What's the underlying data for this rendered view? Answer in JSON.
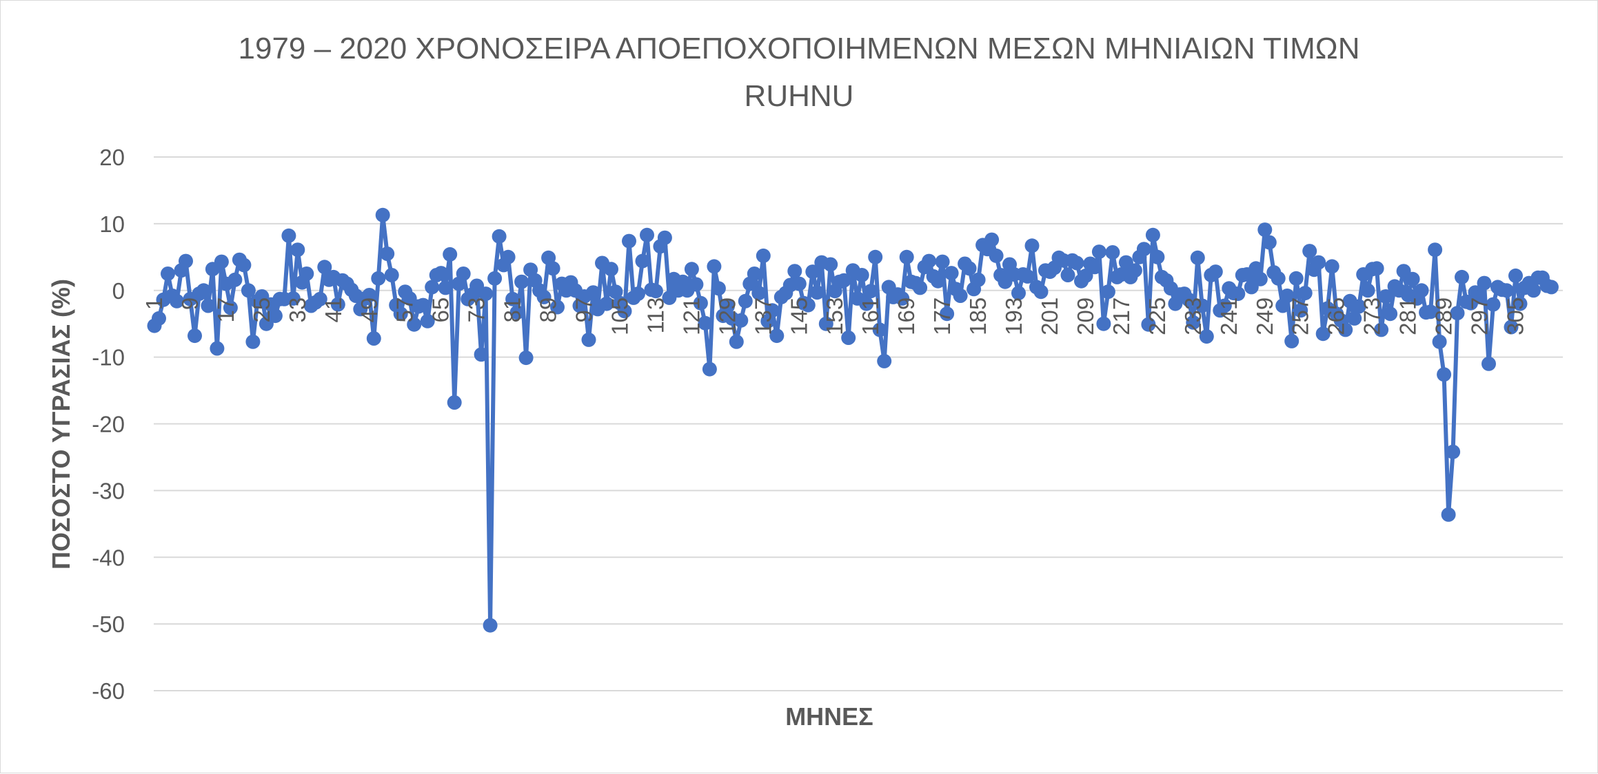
{
  "chart_data": {
    "type": "line",
    "title_lines": [
      "1979 – 2020 ΧΡΟΝΟΣΕΙΡΑ ΑΠΟΕΠΟΧΟΠΟΙΗΜΕΝΩΝ ΜΕΣΩΝ ΜΗΝΙΑΙΩΝ ΤΙΜΩΝ",
      "RUHNU"
    ],
    "xlabel": "ΜΗΝΕΣ",
    "ylabel": "ΠΟΣΟΣΤΟ ΥΓΡΑΣΙΑΣ (%)",
    "ylim": [
      -60,
      20
    ],
    "y_ticks": [
      20,
      10,
      0,
      -10,
      -20,
      -30,
      -40,
      -50,
      -60
    ],
    "x_tick_labels": [
      "1",
      "9",
      "17",
      "25",
      "33",
      "41",
      "49",
      "57",
      "65",
      "73",
      "81",
      "89",
      "97",
      "105",
      "113",
      "121",
      "129",
      "137",
      "145",
      "153",
      "161",
      "169",
      "177",
      "185",
      "193",
      "201",
      "209",
      "217",
      "225",
      "233",
      "241",
      "249",
      "257",
      "265",
      "273",
      "281",
      "289",
      "297",
      "305"
    ],
    "x_tick_step": 8,
    "grid": "horizontal",
    "marker": "circle",
    "series_color": "#4472C4",
    "series": [
      {
        "values": [
          -5.3,
          -4.2,
          -1.4,
          2.5,
          -0.8,
          -1.6,
          3.0,
          4.4,
          -1.3,
          -6.8,
          -0.5,
          0.0,
          -2.3,
          3.2,
          -8.7,
          4.3,
          1.0,
          -2.6,
          1.6,
          4.6,
          3.8,
          0.0,
          -7.7,
          -1.6,
          -0.9,
          -5.0,
          -2.1,
          -3.8,
          -1.3,
          -1.3,
          8.2,
          -1.2,
          6.1,
          1.2,
          2.5,
          -2.3,
          -1.8,
          -1.3,
          3.5,
          1.6,
          2.0,
          -2.1,
          1.5,
          1.0,
          0.1,
          -0.8,
          -2.8,
          -1.2,
          -0.7,
          -7.2,
          1.8,
          11.3,
          5.5,
          2.3,
          -2.2,
          -3.5,
          -0.2,
          -1.2,
          -5.1,
          -2.4,
          -2.2,
          -4.6,
          0.5,
          2.3,
          2.6,
          0.4,
          5.4,
          -16.8,
          1.0,
          2.5,
          -1.3,
          -0.6,
          0.7,
          -9.6,
          -0.5,
          -50.2,
          1.8,
          8.1,
          3.8,
          5.0,
          -1.3,
          -3.3,
          1.3,
          -10.1,
          3.1,
          1.5,
          0.0,
          -1.0,
          4.9,
          3.3,
          -2.5,
          1.0,
          0.0,
          1.2,
          0.0,
          -2.3,
          -0.9,
          -7.4,
          -0.3,
          -2.8,
          4.1,
          -2.0,
          3.2,
          -0.2,
          -1.9,
          -3.1,
          7.4,
          -1.1,
          -0.5,
          4.4,
          8.3,
          0.1,
          -0.1,
          6.6,
          7.9,
          -1.1,
          1.7,
          0.0,
          1.3,
          0.0,
          3.2,
          0.9,
          -1.9,
          -4.9,
          -11.8,
          3.6,
          0.3,
          -3.8,
          -2.4,
          -4.2,
          -7.7,
          -4.5,
          -1.6,
          1.0,
          2.5,
          -0.4,
          5.2,
          -4.6,
          -3.0,
          -6.8,
          -1.0,
          -0.4,
          0.8,
          2.9,
          1.0,
          -1.9,
          -2.2,
          2.8,
          -0.3,
          4.2,
          -5.0,
          3.9,
          -0.1,
          1.3,
          1.5,
          -7.1,
          3.0,
          -1.2,
          2.3,
          -2.0,
          -0.1,
          5.0,
          -5.9,
          -10.6,
          0.5,
          -1.0,
          -0.6,
          -1.2,
          5.0,
          1.3,
          1.1,
          0.4,
          3.5,
          4.4,
          2.1,
          1.4,
          4.3,
          -3.5,
          2.6,
          0.2,
          -0.8,
          4.0,
          3.3,
          0.2,
          1.6,
          6.8,
          6.2,
          7.6,
          5.2,
          2.3,
          1.3,
          3.9,
          2.4,
          -0.4,
          2.4,
          2.1,
          6.7,
          0.5,
          -0.2,
          3.0,
          2.8,
          3.4,
          4.9,
          4.5,
          2.3,
          4.5,
          4.1,
          1.4,
          2.2,
          4.0,
          3.5,
          5.8,
          -5.0,
          -0.2,
          5.7,
          2.0,
          2.4,
          4.2,
          2.0,
          3.0,
          5.0,
          6.2,
          -5.1,
          8.3,
          5.0,
          2.0,
          1.5,
          0.3,
          -2.0,
          -0.6,
          -0.5,
          -1.4,
          -4.8,
          4.9,
          -2.3,
          -6.9,
          2.3,
          2.8,
          -3.0,
          -2.3,
          0.3,
          -0.4,
          -0.5,
          2.3,
          2.4,
          0.5,
          3.3,
          1.7,
          9.1,
          7.2,
          2.7,
          1.8,
          -2.3,
          -0.8,
          -7.6,
          1.8,
          -3.0,
          -0.4,
          5.9,
          3.1,
          4.2,
          -6.5,
          -2.7,
          3.6,
          -3.5,
          -4.5,
          -5.9,
          -1.6,
          -4.2,
          -2.4,
          2.4,
          0.0,
          3.2,
          3.3,
          -5.9,
          -0.9,
          -3.5,
          0.6,
          0.0,
          2.9,
          -0.7,
          1.7,
          -1.2,
          0.0,
          -3.3,
          -3.2,
          6.1,
          -7.7,
          -12.6,
          -33.6,
          -24.2,
          -3.4,
          2.0,
          -1.7,
          -1.9,
          -0.3,
          -1.0,
          1.1,
          -11.0,
          -2.1,
          0.5,
          0.1,
          0.0,
          -5.5,
          2.2,
          -2.0,
          0.4,
          1.1,
          0.0,
          1.9,
          1.9,
          0.7,
          0.5
        ]
      }
    ]
  }
}
